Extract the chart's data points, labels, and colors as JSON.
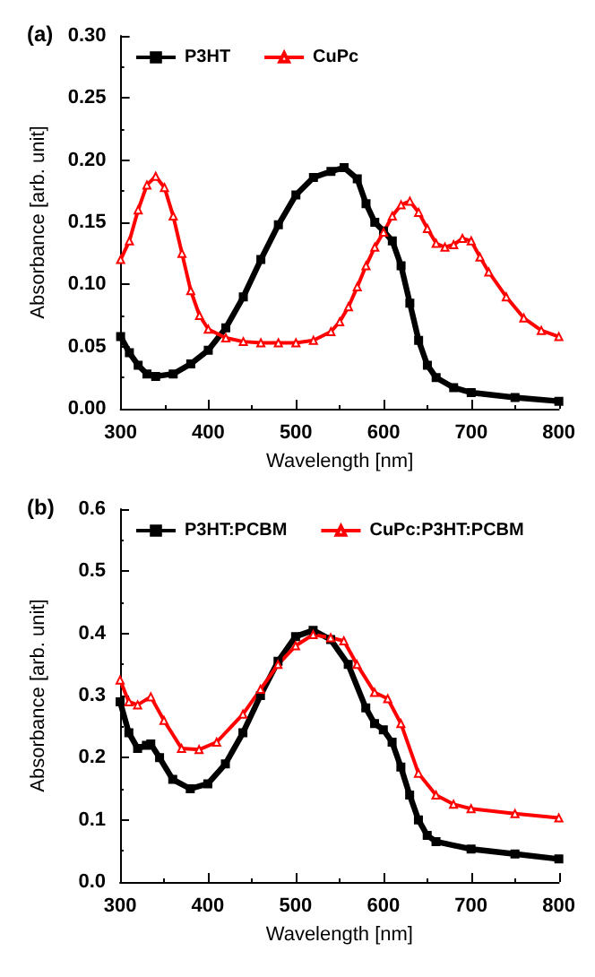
{
  "chart_data": [
    {
      "type": "line",
      "title": "(a)",
      "xlabel": "Wavelength [nm]",
      "ylabel": "Absorbance [arb. unit]",
      "legend": "top left",
      "grid": false,
      "line_style": "solid",
      "xlim": [
        300,
        800
      ],
      "xticks": [
        300,
        400,
        500,
        600,
        700,
        800
      ],
      "ylim": [
        0,
        0.3
      ],
      "yticks": [
        {
          "value": 0,
          "label": "0.00"
        },
        {
          "value": 0.05,
          "label": "0.05"
        },
        {
          "value": 0.1,
          "label": "0.10"
        },
        {
          "value": 0.15,
          "label": "0.15"
        },
        {
          "value": 0.2,
          "label": "0.20"
        },
        {
          "value": 0.25,
          "label": "0.25"
        },
        {
          "value": 0.3,
          "label": "0.30"
        }
      ],
      "series": [
        {
          "name": "P3HT",
          "color": "#000000",
          "marker": "square",
          "x": [
            300,
            310,
            320,
            330,
            340,
            360,
            380,
            400,
            420,
            440,
            460,
            480,
            500,
            520,
            540,
            555,
            570,
            580,
            590,
            600,
            610,
            620,
            630,
            640,
            650,
            660,
            680,
            700,
            750,
            800
          ],
          "values": [
            0.058,
            0.045,
            0.035,
            0.028,
            0.026,
            0.028,
            0.036,
            0.047,
            0.065,
            0.09,
            0.12,
            0.148,
            0.172,
            0.186,
            0.191,
            0.194,
            0.185,
            0.165,
            0.15,
            0.143,
            0.135,
            0.115,
            0.085,
            0.055,
            0.035,
            0.025,
            0.017,
            0.013,
            0.009,
            0.006
          ]
        },
        {
          "name": "CuPc",
          "color": "#ff0000",
          "marker": "triangle",
          "x": [
            300,
            310,
            320,
            330,
            340,
            350,
            360,
            370,
            380,
            390,
            400,
            420,
            440,
            460,
            480,
            500,
            520,
            540,
            550,
            560,
            570,
            580,
            590,
            600,
            610,
            620,
            630,
            640,
            650,
            660,
            670,
            680,
            690,
            700,
            710,
            720,
            740,
            760,
            780,
            800
          ],
          "values": [
            0.12,
            0.135,
            0.16,
            0.18,
            0.187,
            0.178,
            0.155,
            0.125,
            0.095,
            0.075,
            0.064,
            0.057,
            0.054,
            0.053,
            0.053,
            0.053,
            0.055,
            0.062,
            0.07,
            0.082,
            0.098,
            0.115,
            0.13,
            0.142,
            0.155,
            0.164,
            0.167,
            0.158,
            0.145,
            0.133,
            0.13,
            0.132,
            0.137,
            0.135,
            0.122,
            0.11,
            0.09,
            0.073,
            0.063,
            0.058
          ]
        }
      ]
    },
    {
      "type": "line",
      "title": "(b)",
      "xlabel": "Wavelength [nm]",
      "ylabel": "Absorbance [arb. unit]",
      "legend": "top left",
      "grid": false,
      "line_style": "solid",
      "xlim": [
        300,
        800
      ],
      "xticks": [
        300,
        400,
        500,
        600,
        700,
        800
      ],
      "ylim": [
        0,
        0.6
      ],
      "yticks": [
        {
          "value": 0,
          "label": "0.0"
        },
        0.1,
        0.2,
        0.3,
        0.4,
        0.5,
        0.6
      ],
      "series": [
        {
          "name": "P3HT:PCBM",
          "color": "#000000",
          "marker": "square",
          "x": [
            300,
            310,
            320,
            330,
            335,
            345,
            360,
            380,
            400,
            420,
            440,
            460,
            480,
            500,
            520,
            540,
            560,
            580,
            590,
            600,
            610,
            620,
            630,
            640,
            650,
            660,
            700,
            750,
            800
          ],
          "values": [
            0.29,
            0.24,
            0.215,
            0.22,
            0.222,
            0.2,
            0.165,
            0.15,
            0.158,
            0.19,
            0.24,
            0.3,
            0.355,
            0.395,
            0.405,
            0.39,
            0.35,
            0.28,
            0.255,
            0.245,
            0.225,
            0.185,
            0.14,
            0.1,
            0.075,
            0.065,
            0.053,
            0.045,
            0.037
          ]
        },
        {
          "name": "CuPc:P3HT:PCBM",
          "color": "#ff0000",
          "marker": "triangle",
          "x": [
            300,
            310,
            320,
            335,
            350,
            370,
            390,
            410,
            440,
            460,
            480,
            500,
            520,
            540,
            555,
            570,
            590,
            605,
            620,
            640,
            660,
            680,
            700,
            750,
            800
          ],
          "values": [
            0.325,
            0.29,
            0.285,
            0.298,
            0.26,
            0.215,
            0.213,
            0.225,
            0.27,
            0.31,
            0.35,
            0.38,
            0.398,
            0.393,
            0.388,
            0.35,
            0.305,
            0.295,
            0.255,
            0.175,
            0.14,
            0.125,
            0.118,
            0.11,
            0.103
          ]
        }
      ]
    }
  ]
}
